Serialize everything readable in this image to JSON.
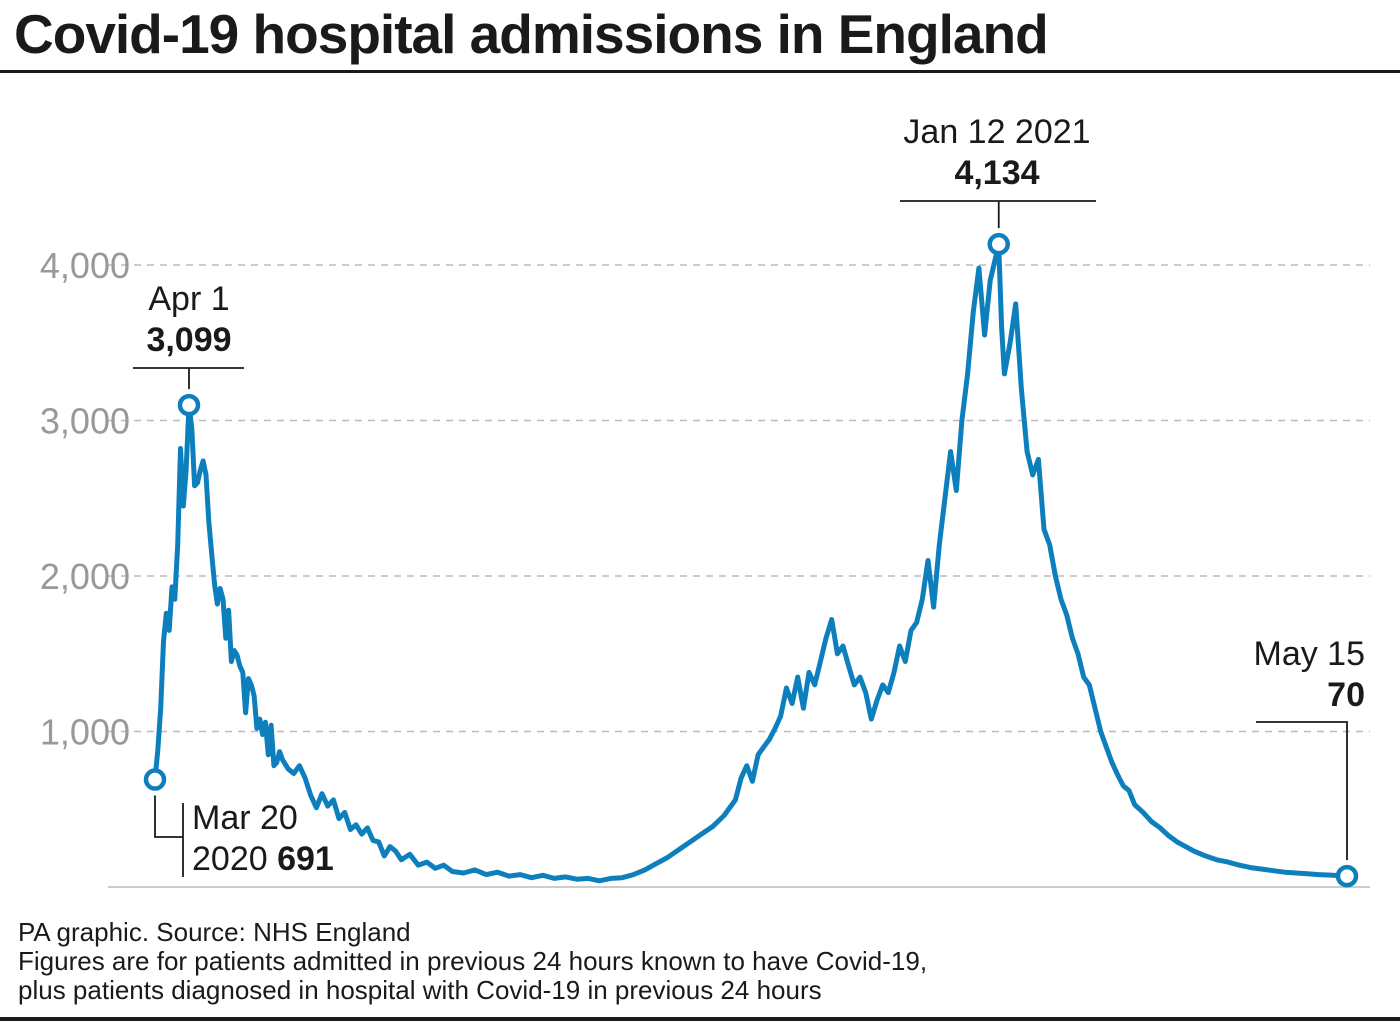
{
  "title": "Covid-19 hospital admissions in England",
  "footer": {
    "source": "PA graphic. Source: NHS England",
    "note_line1": "Figures are for patients admitted in previous 24 hours known to have Covid-19,",
    "note_line2": "plus patients diagnosed in hospital with Covid-19 in previous 24 hours"
  },
  "colors": {
    "line": "#0e7fbd",
    "grid": "#bbbbbb",
    "tick": "#999999",
    "text": "#1a1a1a"
  },
  "chart_data": {
    "type": "line",
    "title": "Covid-19 hospital admissions in England",
    "xlabel": "",
    "ylabel": "",
    "x_range": [
      "2020-03-20",
      "2021-05-15"
    ],
    "ylim": [
      0,
      4000
    ],
    "yticks": [
      1000,
      2000,
      3000,
      4000
    ],
    "ytick_labels": [
      "1,000",
      "2,000",
      "3,000",
      "4,000"
    ],
    "grid": "dashed horizontal",
    "series": [
      {
        "points": [
          [
            "2020-03-20",
            691
          ],
          [
            "2020-03-21",
            880
          ],
          [
            "2020-03-22",
            1150
          ],
          [
            "2020-03-23",
            1580
          ],
          [
            "2020-03-24",
            1760
          ],
          [
            "2020-03-25",
            1650
          ],
          [
            "2020-03-26",
            1930
          ],
          [
            "2020-03-27",
            1850
          ],
          [
            "2020-03-28",
            2200
          ],
          [
            "2020-03-29",
            2820
          ],
          [
            "2020-03-30",
            2450
          ],
          [
            "2020-03-31",
            2680
          ],
          [
            "2020-04-01",
            3099
          ],
          [
            "2020-04-02",
            2950
          ],
          [
            "2020-04-03",
            2580
          ],
          [
            "2020-04-04",
            2600
          ],
          [
            "2020-04-05",
            2680
          ],
          [
            "2020-04-06",
            2740
          ],
          [
            "2020-04-07",
            2650
          ],
          [
            "2020-04-08",
            2350
          ],
          [
            "2020-04-09",
            2150
          ],
          [
            "2020-04-10",
            1950
          ],
          [
            "2020-04-11",
            1820
          ],
          [
            "2020-04-12",
            1920
          ],
          [
            "2020-04-13",
            1850
          ],
          [
            "2020-04-14",
            1600
          ],
          [
            "2020-04-15",
            1780
          ],
          [
            "2020-04-16",
            1450
          ],
          [
            "2020-04-17",
            1520
          ],
          [
            "2020-04-18",
            1490
          ],
          [
            "2020-04-19",
            1420
          ],
          [
            "2020-04-20",
            1380
          ],
          [
            "2020-04-21",
            1120
          ],
          [
            "2020-04-22",
            1340
          ],
          [
            "2020-04-23",
            1300
          ],
          [
            "2020-04-24",
            1230
          ],
          [
            "2020-04-25",
            1020
          ],
          [
            "2020-04-26",
            1080
          ],
          [
            "2020-04-27",
            980
          ],
          [
            "2020-04-28",
            1060
          ],
          [
            "2020-04-29",
            850
          ],
          [
            "2020-04-30",
            1040
          ],
          [
            "2020-05-01",
            780
          ],
          [
            "2020-05-02",
            800
          ],
          [
            "2020-05-03",
            870
          ],
          [
            "2020-05-04",
            820
          ],
          [
            "2020-05-06",
            760
          ],
          [
            "2020-05-08",
            730
          ],
          [
            "2020-05-10",
            780
          ],
          [
            "2020-05-12",
            700
          ],
          [
            "2020-05-14",
            590
          ],
          [
            "2020-05-16",
            510
          ],
          [
            "2020-05-18",
            600
          ],
          [
            "2020-05-20",
            520
          ],
          [
            "2020-05-22",
            560
          ],
          [
            "2020-05-24",
            440
          ],
          [
            "2020-05-26",
            480
          ],
          [
            "2020-05-28",
            370
          ],
          [
            "2020-05-30",
            400
          ],
          [
            "2020-06-01",
            340
          ],
          [
            "2020-06-03",
            380
          ],
          [
            "2020-06-05",
            300
          ],
          [
            "2020-06-07",
            290
          ],
          [
            "2020-06-09",
            200
          ],
          [
            "2020-06-11",
            260
          ],
          [
            "2020-06-13",
            230
          ],
          [
            "2020-06-15",
            175
          ],
          [
            "2020-06-18",
            210
          ],
          [
            "2020-06-21",
            140
          ],
          [
            "2020-06-24",
            160
          ],
          [
            "2020-06-27",
            120
          ],
          [
            "2020-06-30",
            140
          ],
          [
            "2020-07-03",
            100
          ],
          [
            "2020-07-07",
            90
          ],
          [
            "2020-07-11",
            110
          ],
          [
            "2020-07-15",
            80
          ],
          [
            "2020-07-19",
            95
          ],
          [
            "2020-07-23",
            70
          ],
          [
            "2020-07-27",
            80
          ],
          [
            "2020-07-31",
            60
          ],
          [
            "2020-08-04",
            75
          ],
          [
            "2020-08-08",
            55
          ],
          [
            "2020-08-12",
            65
          ],
          [
            "2020-08-16",
            50
          ],
          [
            "2020-08-20",
            55
          ],
          [
            "2020-08-24",
            40
          ],
          [
            "2020-08-28",
            55
          ],
          [
            "2020-09-01",
            60
          ],
          [
            "2020-09-05",
            80
          ],
          [
            "2020-09-09",
            110
          ],
          [
            "2020-09-13",
            150
          ],
          [
            "2020-09-17",
            190
          ],
          [
            "2020-09-21",
            240
          ],
          [
            "2020-09-25",
            290
          ],
          [
            "2020-09-29",
            340
          ],
          [
            "2020-10-03",
            390
          ],
          [
            "2020-10-07",
            460
          ],
          [
            "2020-10-11",
            560
          ],
          [
            "2020-10-13",
            700
          ],
          [
            "2020-10-15",
            780
          ],
          [
            "2020-10-17",
            680
          ],
          [
            "2020-10-19",
            850
          ],
          [
            "2020-10-21",
            900
          ],
          [
            "2020-10-23",
            950
          ],
          [
            "2020-10-25",
            1020
          ],
          [
            "2020-10-27",
            1100
          ],
          [
            "2020-10-29",
            1280
          ],
          [
            "2020-10-31",
            1180
          ],
          [
            "2020-11-02",
            1350
          ],
          [
            "2020-11-04",
            1150
          ],
          [
            "2020-11-06",
            1380
          ],
          [
            "2020-11-08",
            1300
          ],
          [
            "2020-11-10",
            1450
          ],
          [
            "2020-11-12",
            1600
          ],
          [
            "2020-11-14",
            1720
          ],
          [
            "2020-11-16",
            1500
          ],
          [
            "2020-11-18",
            1550
          ],
          [
            "2020-11-20",
            1420
          ],
          [
            "2020-11-22",
            1300
          ],
          [
            "2020-11-24",
            1350
          ],
          [
            "2020-11-26",
            1250
          ],
          [
            "2020-11-28",
            1080
          ],
          [
            "2020-11-30",
            1200
          ],
          [
            "2020-12-02",
            1300
          ],
          [
            "2020-12-04",
            1250
          ],
          [
            "2020-12-06",
            1380
          ],
          [
            "2020-12-08",
            1550
          ],
          [
            "2020-12-10",
            1450
          ],
          [
            "2020-12-12",
            1650
          ],
          [
            "2020-12-14",
            1700
          ],
          [
            "2020-12-16",
            1850
          ],
          [
            "2020-12-18",
            2100
          ],
          [
            "2020-12-20",
            1800
          ],
          [
            "2020-12-22",
            2200
          ],
          [
            "2020-12-24",
            2500
          ],
          [
            "2020-12-26",
            2800
          ],
          [
            "2020-12-28",
            2550
          ],
          [
            "2020-12-30",
            3000
          ],
          [
            "2021-01-01",
            3300
          ],
          [
            "2021-01-03",
            3700
          ],
          [
            "2021-01-05",
            3980
          ],
          [
            "2021-01-07",
            3550
          ],
          [
            "2021-01-09",
            3900
          ],
          [
            "2021-01-12",
            4134
          ],
          [
            "2021-01-13",
            3600
          ],
          [
            "2021-01-14",
            3300
          ],
          [
            "2021-01-16",
            3500
          ],
          [
            "2021-01-18",
            3750
          ],
          [
            "2021-01-20",
            3200
          ],
          [
            "2021-01-22",
            2800
          ],
          [
            "2021-01-24",
            2650
          ],
          [
            "2021-01-26",
            2750
          ],
          [
            "2021-01-28",
            2300
          ],
          [
            "2021-01-30",
            2200
          ],
          [
            "2021-02-01",
            2000
          ],
          [
            "2021-02-03",
            1850
          ],
          [
            "2021-02-05",
            1750
          ],
          [
            "2021-02-07",
            1600
          ],
          [
            "2021-02-09",
            1500
          ],
          [
            "2021-02-11",
            1350
          ],
          [
            "2021-02-13",
            1300
          ],
          [
            "2021-02-15",
            1150
          ],
          [
            "2021-02-17",
            1000
          ],
          [
            "2021-02-19",
            900
          ],
          [
            "2021-02-21",
            800
          ],
          [
            "2021-02-23",
            720
          ],
          [
            "2021-02-25",
            650
          ],
          [
            "2021-02-27",
            620
          ],
          [
            "2021-03-01",
            530
          ],
          [
            "2021-03-04",
            480
          ],
          [
            "2021-03-07",
            420
          ],
          [
            "2021-03-10",
            380
          ],
          [
            "2021-03-13",
            330
          ],
          [
            "2021-03-16",
            290
          ],
          [
            "2021-03-19",
            260
          ],
          [
            "2021-03-22",
            230
          ],
          [
            "2021-03-26",
            200
          ],
          [
            "2021-03-30",
            175
          ],
          [
            "2021-04-03",
            160
          ],
          [
            "2021-04-07",
            140
          ],
          [
            "2021-04-11",
            125
          ],
          [
            "2021-04-15",
            115
          ],
          [
            "2021-04-19",
            105
          ],
          [
            "2021-04-23",
            95
          ],
          [
            "2021-04-27",
            90
          ],
          [
            "2021-05-01",
            85
          ],
          [
            "2021-05-05",
            80
          ],
          [
            "2021-05-10",
            75
          ],
          [
            "2021-05-15",
            70
          ]
        ]
      }
    ],
    "annotations": [
      {
        "date": "2020-03-20",
        "label_line1": "Mar 20",
        "label_line2": "2020",
        "value_label": "691",
        "value": 691
      },
      {
        "date": "2020-04-01",
        "label_line1": "Apr 1",
        "value_label": "3,099",
        "value": 3099
      },
      {
        "date": "2021-01-12",
        "label_line1": "Jan 12 2021",
        "value_label": "4,134",
        "value": 4134
      },
      {
        "date": "2021-05-15",
        "label_line1": "May 15",
        "value_label": "70",
        "value": 70
      }
    ]
  }
}
